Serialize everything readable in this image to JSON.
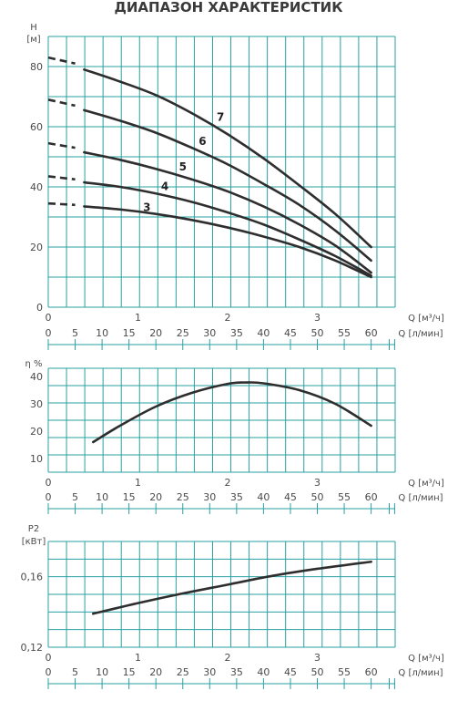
{
  "title": "ДИАПАЗОН ХАРАКТЕРИСТИК",
  "colors": {
    "grid": "#2aa0a2",
    "curve": "#2e2e2e",
    "text": "#4a4a4a"
  },
  "chart_data": [
    {
      "type": "line",
      "ylabel": "H",
      "yunit": "[м]",
      "x_q_label": "Q [м³/ч]",
      "x_lmin_label": "Q [л/мин]",
      "xlim": [
        0,
        3.9
      ],
      "ylim": [
        0,
        90
      ],
      "q_ticks": [
        "0",
        "1",
        "2",
        "3"
      ],
      "lmin_ticks": [
        "0",
        "5",
        "10",
        "15",
        "20",
        "25",
        "30",
        "35",
        "40",
        "45",
        "50",
        "55",
        "60"
      ],
      "y_ticks": [
        "0",
        "20",
        "40",
        "60",
        "80"
      ],
      "grid": true,
      "series": [
        {
          "name": "7",
          "x": [
            0.4,
            0.8,
            1.2,
            1.6,
            2.0,
            2.4,
            2.8,
            3.2,
            3.6
          ],
          "y": [
            79,
            75,
            70.5,
            64.5,
            57.5,
            49.5,
            40.5,
            31,
            20
          ],
          "dashed_start": [
            [
              0,
              83
            ],
            [
              0.3,
              81
            ]
          ]
        },
        {
          "name": "6",
          "x": [
            0.4,
            0.8,
            1.2,
            1.6,
            2.0,
            2.4,
            2.8,
            3.2,
            3.6
          ],
          "y": [
            65.5,
            62,
            58,
            53,
            47.5,
            41,
            34,
            25.5,
            15.5
          ],
          "dashed_start": [
            [
              0,
              69
            ],
            [
              0.3,
              67
            ]
          ]
        },
        {
          "name": "5",
          "x": [
            0.4,
            0.8,
            1.2,
            1.6,
            2.0,
            2.4,
            2.8,
            3.2,
            3.6
          ],
          "y": [
            51.5,
            49,
            46,
            42.5,
            38.5,
            33.5,
            27.5,
            20.5,
            11.5
          ],
          "dashed_start": [
            [
              0,
              54.5
            ],
            [
              0.3,
              53
            ]
          ]
        },
        {
          "name": "4",
          "x": [
            0.4,
            0.8,
            1.2,
            1.6,
            2.0,
            2.4,
            2.8,
            3.2,
            3.6
          ],
          "y": [
            41.5,
            40,
            37.8,
            35,
            31.5,
            27.5,
            22.5,
            17,
            10.5
          ],
          "dashed_start": [
            [
              0,
              43.5
            ],
            [
              0.3,
              42.5
            ]
          ]
        },
        {
          "name": "3",
          "x": [
            0.4,
            0.8,
            1.2,
            1.6,
            2.0,
            2.4,
            2.8,
            3.2,
            3.6
          ],
          "y": [
            33.5,
            32.5,
            31,
            29,
            26.5,
            23.5,
            20,
            15.5,
            10
          ],
          "dashed_start": [
            [
              0,
              34.5
            ],
            [
              0.3,
              34
            ]
          ]
        }
      ],
      "curve_labels": [
        {
          "text": "7",
          "x": 1.92,
          "y": 62
        },
        {
          "text": "6",
          "x": 1.72,
          "y": 54
        },
        {
          "text": "5",
          "x": 1.5,
          "y": 45.5
        },
        {
          "text": "4",
          "x": 1.3,
          "y": 39
        },
        {
          "text": "3",
          "x": 1.1,
          "y": 32
        }
      ]
    },
    {
      "type": "line",
      "ylabel": "η %",
      "x_q_label": "Q [м³/ч]",
      "x_lmin_label": "Q [л/мин]",
      "xlim": [
        0,
        3.9
      ],
      "ylim": [
        5,
        43
      ],
      "q_ticks": [
        "0",
        "1",
        "2",
        "3"
      ],
      "lmin_ticks": [
        "0",
        "5",
        "10",
        "15",
        "20",
        "25",
        "30",
        "35",
        "40",
        "45",
        "50",
        "55",
        "60"
      ],
      "y_ticks": [
        "10",
        "20",
        "30",
        "40"
      ],
      "grid": true,
      "series": [
        {
          "x": [
            0.5,
            0.8,
            1.2,
            1.6,
            2.0,
            2.2,
            2.4,
            2.8,
            3.2,
            3.6
          ],
          "y": [
            16,
            22,
            29,
            34,
            37.3,
            37.8,
            37.5,
            35,
            30,
            22
          ]
        }
      ]
    },
    {
      "type": "line",
      "ylabel": "P2",
      "yunit": "[кВт]",
      "x_q_label": "Q [м³/ч]",
      "x_lmin_label": "Q [л/мин]",
      "xlim": [
        0,
        3.9
      ],
      "ylim": [
        0.12,
        0.18
      ],
      "q_ticks": [
        "0",
        "1",
        "2",
        "3"
      ],
      "lmin_ticks": [
        "0",
        "5",
        "10",
        "15",
        "20",
        "25",
        "30",
        "35",
        "40",
        "45",
        "50",
        "55",
        "60"
      ],
      "y_ticks": [
        "0,12",
        "0,16"
      ],
      "grid": true,
      "series": [
        {
          "x": [
            0.5,
            1.0,
            1.5,
            2.0,
            2.5,
            3.0,
            3.6
          ],
          "y": [
            0.139,
            0.145,
            0.1505,
            0.1555,
            0.1605,
            0.1645,
            0.1685
          ]
        }
      ]
    }
  ]
}
